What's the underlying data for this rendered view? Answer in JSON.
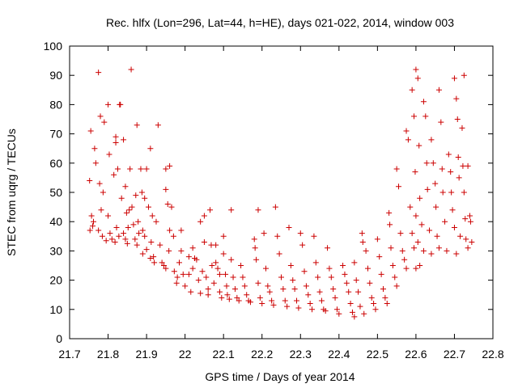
{
  "chart_data": {
    "type": "scatter",
    "title": "Rec. hlfx (Lon=296, Lat=44, h=HE), days 021-022, 2014, window 003",
    "xlabel": "GPS time / Days of year 2014",
    "ylabel": "STEC from uqrg / TECUs",
    "xlim": [
      21.7,
      22.8
    ],
    "ylim": [
      0,
      100
    ],
    "xticks": [
      "21.7",
      "21.8",
      "21.9",
      "22",
      "22.1",
      "22.2",
      "22.3",
      "22.4",
      "22.5",
      "22.6",
      "22.7",
      "22.8"
    ],
    "yticks": [
      "0",
      "10",
      "20",
      "30",
      "40",
      "50",
      "60",
      "70",
      "80",
      "90",
      "100"
    ],
    "grid": false,
    "marker": "plus",
    "color": "#cc0000",
    "series": [
      {
        "points": [
          [
            21.755,
            71
          ],
          [
            21.765,
            65
          ],
          [
            21.768,
            60
          ],
          [
            21.752,
            54
          ],
          [
            21.757,
            42
          ],
          [
            21.762,
            40
          ],
          [
            21.753,
            37
          ],
          [
            21.76,
            38.5
          ],
          [
            21.775,
            91
          ],
          [
            21.78,
            76
          ],
          [
            21.79,
            74
          ],
          [
            21.778,
            53
          ],
          [
            21.782,
            44
          ],
          [
            21.775,
            37
          ],
          [
            21.785,
            35
          ],
          [
            21.787,
            50
          ],
          [
            21.8,
            80
          ],
          [
            21.803,
            63
          ],
          [
            21.8,
            42
          ],
          [
            21.805,
            36
          ],
          [
            21.795,
            33.5
          ],
          [
            21.81,
            34
          ],
          [
            21.82,
            69
          ],
          [
            21.82,
            67
          ],
          [
            21.825,
            58
          ],
          [
            21.815,
            56
          ],
          [
            21.822,
            38
          ],
          [
            21.828,
            35
          ],
          [
            21.818,
            33
          ],
          [
            21.83,
            80
          ],
          [
            21.832,
            80
          ],
          [
            21.835,
            48
          ],
          [
            21.84,
            36
          ],
          [
            21.845,
            34
          ],
          [
            21.84,
            68
          ],
          [
            21.845,
            52
          ],
          [
            21.848,
            43
          ],
          [
            21.852,
            38
          ],
          [
            21.85,
            32.5
          ],
          [
            21.86,
            92
          ],
          [
            21.857,
            58
          ],
          [
            21.862,
            45
          ],
          [
            21.866,
            39
          ],
          [
            21.87,
            34
          ],
          [
            21.855,
            44
          ],
          [
            21.875,
            73
          ],
          [
            21.872,
            49
          ],
          [
            21.878,
            40
          ],
          [
            21.88,
            36
          ],
          [
            21.875,
            32
          ],
          [
            21.885,
            58
          ],
          [
            21.888,
            50
          ],
          [
            21.89,
            37
          ],
          [
            21.895,
            35
          ],
          [
            21.89,
            29
          ],
          [
            21.9,
            58
          ],
          [
            21.905,
            45
          ],
          [
            21.9,
            30.5
          ],
          [
            21.91,
            27.5
          ],
          [
            21.895,
            48
          ],
          [
            21.91,
            65
          ],
          [
            21.915,
            42
          ],
          [
            21.912,
            33
          ],
          [
            21.918,
            28
          ],
          [
            21.92,
            26
          ],
          [
            21.93,
            73
          ],
          [
            21.925,
            40
          ],
          [
            21.935,
            32
          ],
          [
            21.94,
            26
          ],
          [
            21.945,
            25
          ],
          [
            21.95,
            58
          ],
          [
            21.95,
            51
          ],
          [
            21.955,
            46
          ],
          [
            21.96,
            37
          ],
          [
            21.958,
            30
          ],
          [
            21.95,
            24
          ],
          [
            21.96,
            59
          ],
          [
            21.965,
            45
          ],
          [
            21.97,
            35
          ],
          [
            21.972,
            23
          ],
          [
            21.978,
            19
          ],
          [
            21.98,
            21
          ],
          [
            21.99,
            37
          ],
          [
            21.985,
            26
          ],
          [
            21.995,
            22
          ],
          [
            22.0,
            18
          ],
          [
            21.99,
            30
          ],
          [
            22.01,
            28
          ],
          [
            22.01,
            22
          ],
          [
            22.015,
            16
          ],
          [
            22.02,
            24
          ],
          [
            22.025,
            27.5
          ],
          [
            22.02,
            31
          ],
          [
            22.03,
            27
          ],
          [
            22.035,
            20
          ],
          [
            22.04,
            15.5
          ],
          [
            22.045,
            23
          ],
          [
            22.04,
            40
          ],
          [
            22.05,
            42
          ],
          [
            22.05,
            33
          ],
          [
            22.055,
            21
          ],
          [
            22.06,
            17
          ],
          [
            22.06,
            15
          ],
          [
            22.065,
            44
          ],
          [
            22.068,
            32
          ],
          [
            22.07,
            25
          ],
          [
            22.075,
            19
          ],
          [
            22.08,
            32
          ],
          [
            22.08,
            26
          ],
          [
            22.085,
            24
          ],
          [
            22.09,
            22
          ],
          [
            22.09,
            16
          ],
          [
            22.095,
            14
          ],
          [
            22.1,
            35
          ],
          [
            22.1,
            29
          ],
          [
            22.105,
            22
          ],
          [
            22.108,
            18
          ],
          [
            22.11,
            15
          ],
          [
            22.115,
            13.5
          ],
          [
            22.12,
            44
          ],
          [
            22.12,
            27
          ],
          [
            22.125,
            21
          ],
          [
            22.13,
            17
          ],
          [
            22.135,
            14
          ],
          [
            22.14,
            13
          ],
          [
            22.145,
            25
          ],
          [
            22.15,
            21
          ],
          [
            22.155,
            18
          ],
          [
            22.16,
            15
          ],
          [
            22.165,
            13
          ],
          [
            22.17,
            12.5
          ],
          [
            22.18,
            34
          ],
          [
            22.182,
            31
          ],
          [
            22.185,
            27
          ],
          [
            22.19,
            44
          ],
          [
            22.19,
            19
          ],
          [
            22.195,
            14
          ],
          [
            22.2,
            12
          ],
          [
            22.205,
            36
          ],
          [
            22.21,
            24
          ],
          [
            22.215,
            18
          ],
          [
            22.22,
            16
          ],
          [
            22.225,
            13
          ],
          [
            22.23,
            11.5
          ],
          [
            22.235,
            45
          ],
          [
            22.24,
            35
          ],
          [
            22.245,
            29
          ],
          [
            22.25,
            21
          ],
          [
            22.255,
            17
          ],
          [
            22.26,
            13
          ],
          [
            22.265,
            11
          ],
          [
            22.27,
            38
          ],
          [
            22.275,
            25
          ],
          [
            22.28,
            20
          ],
          [
            22.285,
            17
          ],
          [
            22.29,
            13
          ],
          [
            22.295,
            10.5
          ],
          [
            22.3,
            36
          ],
          [
            22.305,
            32
          ],
          [
            22.31,
            23
          ],
          [
            22.315,
            18
          ],
          [
            22.32,
            15
          ],
          [
            22.325,
            12
          ],
          [
            22.33,
            10
          ],
          [
            22.335,
            35
          ],
          [
            22.34,
            26
          ],
          [
            22.345,
            21
          ],
          [
            22.35,
            16
          ],
          [
            22.355,
            13
          ],
          [
            22.36,
            10
          ],
          [
            22.365,
            9.5
          ],
          [
            22.37,
            31
          ],
          [
            22.375,
            24
          ],
          [
            22.38,
            21
          ],
          [
            22.385,
            17
          ],
          [
            22.39,
            14
          ],
          [
            22.395,
            10
          ],
          [
            22.4,
            8.5
          ],
          [
            22.41,
            25
          ],
          [
            22.415,
            22
          ],
          [
            22.42,
            19
          ],
          [
            22.425,
            16
          ],
          [
            22.43,
            12
          ],
          [
            22.435,
            9
          ],
          [
            22.44,
            7.5
          ],
          [
            22.44,
            26
          ],
          [
            22.445,
            20
          ],
          [
            22.45,
            16
          ],
          [
            22.455,
            11
          ],
          [
            22.46,
            36
          ],
          [
            22.462,
            33
          ],
          [
            22.465,
            8.5
          ],
          [
            22.47,
            30
          ],
          [
            22.475,
            24
          ],
          [
            22.48,
            19
          ],
          [
            22.485,
            14
          ],
          [
            22.49,
            12
          ],
          [
            22.495,
            10
          ],
          [
            22.5,
            34
          ],
          [
            22.505,
            28
          ],
          [
            22.51,
            22
          ],
          [
            22.515,
            17
          ],
          [
            22.52,
            14
          ],
          [
            22.525,
            12
          ],
          [
            22.53,
            43
          ],
          [
            22.532,
            39
          ],
          [
            22.535,
            31
          ],
          [
            22.54,
            25
          ],
          [
            22.545,
            21
          ],
          [
            22.55,
            18
          ],
          [
            22.55,
            58
          ],
          [
            22.555,
            52
          ],
          [
            22.56,
            36
          ],
          [
            22.565,
            30
          ],
          [
            22.57,
            27
          ],
          [
            22.575,
            24
          ],
          [
            22.575,
            71
          ],
          [
            22.58,
            68
          ],
          [
            22.585,
            45
          ],
          [
            22.59,
            36
          ],
          [
            22.595,
            31
          ],
          [
            22.6,
            24
          ],
          [
            22.59,
            85
          ],
          [
            22.595,
            76
          ],
          [
            22.598,
            57
          ],
          [
            22.6,
            42
          ],
          [
            22.605,
            33
          ],
          [
            22.61,
            25
          ],
          [
            22.6,
            92
          ],
          [
            22.605,
            89
          ],
          [
            22.608,
            66
          ],
          [
            22.61,
            48
          ],
          [
            22.615,
            39
          ],
          [
            22.62,
            30
          ],
          [
            22.62,
            81
          ],
          [
            22.625,
            76
          ],
          [
            22.628,
            60
          ],
          [
            22.63,
            51
          ],
          [
            22.635,
            37
          ],
          [
            22.64,
            29
          ],
          [
            22.64,
            68
          ],
          [
            22.645,
            60
          ],
          [
            22.65,
            53
          ],
          [
            22.652,
            45
          ],
          [
            22.655,
            35
          ],
          [
            22.66,
            31
          ],
          [
            22.66,
            85
          ],
          [
            22.665,
            74
          ],
          [
            22.668,
            58
          ],
          [
            22.67,
            50
          ],
          [
            22.675,
            40
          ],
          [
            22.68,
            30
          ],
          [
            22.685,
            63
          ],
          [
            22.69,
            57
          ],
          [
            22.692,
            50
          ],
          [
            22.695,
            44
          ],
          [
            22.7,
            38
          ],
          [
            22.705,
            29
          ],
          [
            22.7,
            89
          ],
          [
            22.705,
            82
          ],
          [
            22.708,
            75
          ],
          [
            22.71,
            62
          ],
          [
            22.712,
            55
          ],
          [
            22.715,
            35
          ],
          [
            22.72,
            72
          ],
          [
            22.722,
            59
          ],
          [
            22.725,
            50
          ],
          [
            22.728,
            41
          ],
          [
            22.73,
            34
          ],
          [
            22.735,
            31
          ],
          [
            22.725,
            90
          ],
          [
            22.735,
            59
          ],
          [
            22.74,
            42
          ],
          [
            22.742,
            40
          ],
          [
            22.745,
            33
          ]
        ]
      }
    ]
  }
}
